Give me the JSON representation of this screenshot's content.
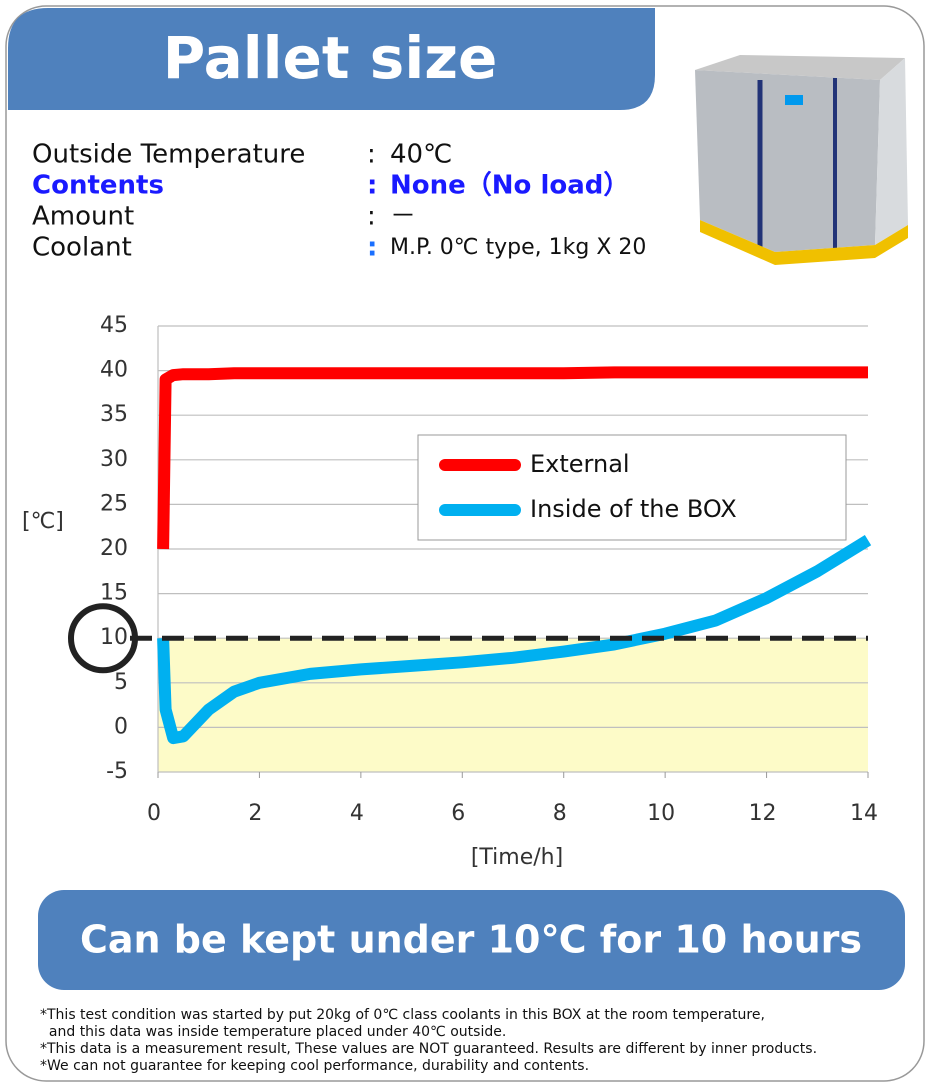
{
  "header": {
    "title": "Pallet size"
  },
  "info": {
    "separator": ":",
    "rows": [
      {
        "label": "Outside Temperature",
        "value": "40℃"
      },
      {
        "label": "Contents",
        "value": "None（No load）"
      },
      {
        "label": "Amount",
        "value": "－"
      },
      {
        "label": "Coolant",
        "value": "M.P. 0℃ type, 1kg X 20"
      }
    ]
  },
  "chart_data": {
    "type": "line",
    "x": [
      0.1,
      0.15,
      0.3,
      0.5,
      1,
      1.5,
      2,
      3,
      4,
      5,
      6,
      7,
      8,
      9,
      10,
      11,
      12,
      13,
      14
    ],
    "series": [
      {
        "name": "External",
        "color": "#ff0000",
        "values": [
          20,
          39,
          39.5,
          39.6,
          39.6,
          39.7,
          39.7,
          39.7,
          39.7,
          39.7,
          39.7,
          39.7,
          39.7,
          39.8,
          39.8,
          39.8,
          39.8,
          39.8,
          39.8
        ]
      },
      {
        "name": "Inside of the BOX",
        "color": "#00b0f0",
        "values": [
          10,
          2,
          -1.2,
          -1,
          2,
          4,
          5,
          6,
          6.5,
          6.9,
          7.3,
          7.8,
          8.5,
          9.3,
          10.5,
          12,
          14.5,
          17.5,
          21
        ]
      }
    ],
    "xlim": [
      0,
      14
    ],
    "ylim": [
      -5,
      45
    ],
    "xticks": [
      0,
      2,
      4,
      6,
      8,
      10,
      12,
      14
    ],
    "yticks": [
      -5,
      0,
      5,
      10,
      15,
      20,
      25,
      30,
      35,
      40,
      45
    ],
    "y_label": "[℃]",
    "x_label": "[Time/h]",
    "threshold": 10,
    "grid": true
  },
  "banner": "Can be kept under 10℃ for 10 hours",
  "footnotes": [
    "*This test condition was started by put 20kg of 0℃ class coolants in this BOX at the room temperature,",
    "  and this data was inside temperature placed under 40℃ outside.",
    "*This data is a measurement result, These values are NOT guaranteed. Results are different by inner products.",
    "*We can not guarantee for keeping cool performance, durability and contents."
  ]
}
